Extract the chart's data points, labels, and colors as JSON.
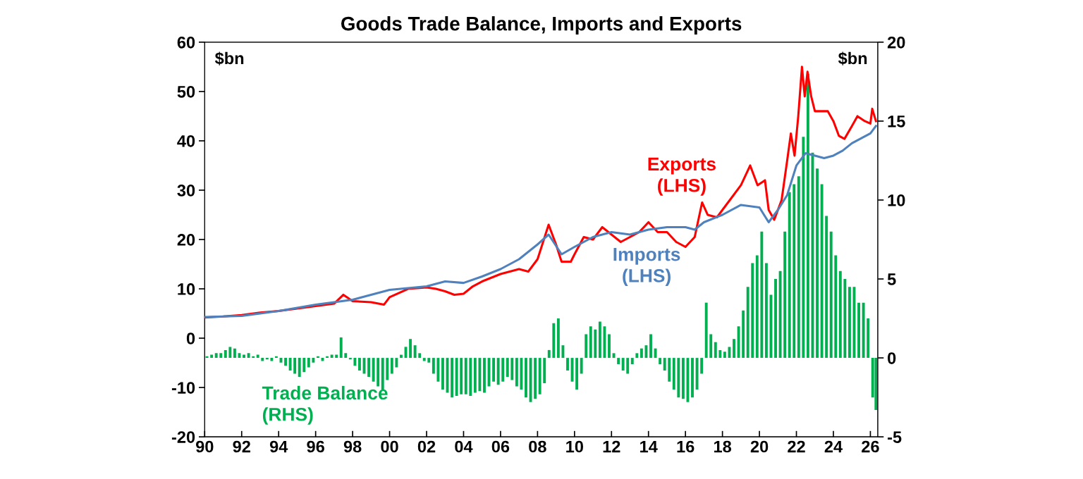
{
  "chart_data": {
    "type": "line",
    "title": "Goods Trade Balance, Imports and Exports",
    "annotations": [
      "$bn",
      "$bn"
    ],
    "xlim": [
      1990,
      2026.4
    ],
    "xticks": [
      {
        "value": 1990,
        "label": "90"
      },
      {
        "value": 1992,
        "label": "92"
      },
      {
        "value": 1994,
        "label": "94"
      },
      {
        "value": 1996,
        "label": "96"
      },
      {
        "value": 1998,
        "label": "98"
      },
      {
        "value": 2000,
        "label": "00"
      },
      {
        "value": 2002,
        "label": "02"
      },
      {
        "value": 2004,
        "label": "04"
      },
      {
        "value": 2006,
        "label": "06"
      },
      {
        "value": 2008,
        "label": "08"
      },
      {
        "value": 2010,
        "label": "10"
      },
      {
        "value": 2012,
        "label": "12"
      },
      {
        "value": 2014,
        "label": "14"
      },
      {
        "value": 2016,
        "label": "16"
      },
      {
        "value": 2018,
        "label": "18"
      },
      {
        "value": 2020,
        "label": "20"
      },
      {
        "value": 2022,
        "label": "22"
      },
      {
        "value": 2024,
        "label": "24"
      },
      {
        "value": 2026,
        "label": "26"
      }
    ],
    "ylim": [
      -20,
      60
    ],
    "yticks": [
      -20,
      -10,
      0,
      10,
      20,
      30,
      40,
      50,
      60
    ],
    "y2lim": [
      -5,
      20
    ],
    "y2ticks": [
      -5,
      0,
      5,
      10,
      15,
      20
    ],
    "grid": false,
    "legend": false,
    "series": [
      {
        "name": "Trade Balance\n(RHS)",
        "type": "bar",
        "axis": "y2",
        "color": "#00b050",
        "x": [
          1990.125,
          1990.375,
          1990.625,
          1990.875,
          1991.125,
          1991.375,
          1991.625,
          1991.875,
          1992.125,
          1992.375,
          1992.625,
          1992.875,
          1993.125,
          1993.375,
          1993.625,
          1993.875,
          1994.125,
          1994.375,
          1994.625,
          1994.875,
          1995.125,
          1995.375,
          1995.625,
          1995.875,
          1996.125,
          1996.375,
          1996.625,
          1996.875,
          1997.125,
          1997.375,
          1997.625,
          1997.875,
          1998.125,
          1998.375,
          1998.625,
          1998.875,
          1999.125,
          1999.375,
          1999.625,
          1999.875,
          2000.125,
          2000.375,
          2000.625,
          2000.875,
          2001.125,
          2001.375,
          2001.625,
          2001.875,
          2002.125,
          2002.375,
          2002.625,
          2002.875,
          2003.125,
          2003.375,
          2003.625,
          2003.875,
          2004.125,
          2004.375,
          2004.625,
          2004.875,
          2005.125,
          2005.375,
          2005.625,
          2005.875,
          2006.125,
          2006.375,
          2006.625,
          2006.875,
          2007.125,
          2007.375,
          2007.625,
          2007.875,
          2008.125,
          2008.375,
          2008.625,
          2008.875,
          2009.125,
          2009.375,
          2009.625,
          2009.875,
          2010.125,
          2010.375,
          2010.625,
          2010.875,
          2011.125,
          2011.375,
          2011.625,
          2011.875,
          2012.125,
          2012.375,
          2012.625,
          2012.875,
          2013.125,
          2013.375,
          2013.625,
          2013.875,
          2014.125,
          2014.375,
          2014.625,
          2014.875,
          2015.125,
          2015.375,
          2015.625,
          2015.875,
          2016.125,
          2016.375,
          2016.625,
          2016.875,
          2017.125,
          2017.375,
          2017.625,
          2017.875,
          2018.125,
          2018.375,
          2018.625,
          2018.875,
          2019.125,
          2019.375,
          2019.625,
          2019.875,
          2020.125,
          2020.375,
          2020.625,
          2020.875,
          2021.125,
          2021.375,
          2021.625,
          2021.875,
          2022.125,
          2022.375,
          2022.625,
          2022.875,
          2023.125,
          2023.375,
          2023.625,
          2023.875,
          2024.125,
          2024.375,
          2024.625,
          2024.875,
          2025.125,
          2025.375,
          2025.625,
          2025.875,
          2026.125,
          2026.3
        ],
        "values": [
          0.1,
          0.2,
          0.3,
          0.3,
          0.5,
          0.7,
          0.6,
          0.3,
          0.2,
          0.3,
          0.1,
          0.2,
          -0.2,
          -0.1,
          -0.2,
          0.1,
          -0.3,
          -0.5,
          -0.8,
          -1.0,
          -1.2,
          -0.9,
          -0.6,
          -0.3,
          0.1,
          -0.2,
          0.1,
          0.2,
          0.2,
          1.3,
          0.3,
          -0.1,
          -0.5,
          -0.8,
          -1.0,
          -1.2,
          -1.5,
          -1.8,
          -2.0,
          -1.4,
          -1.0,
          -0.6,
          0.2,
          0.7,
          1.2,
          0.8,
          0.3,
          -0.2,
          -0.3,
          -1.0,
          -1.5,
          -2.0,
          -2.2,
          -2.5,
          -2.4,
          -2.3,
          -2.3,
          -2.4,
          -2.2,
          -2.1,
          -2.2,
          -1.8,
          -1.5,
          -1.7,
          -1.5,
          -1.2,
          -1.4,
          -1.8,
          -2.0,
          -2.5,
          -2.8,
          -2.6,
          -2.3,
          -1.6,
          0.5,
          2.2,
          2.5,
          0.8,
          -0.8,
          -1.5,
          -2.0,
          -1.0,
          1.5,
          2.0,
          1.8,
          2.3,
          2.0,
          1.5,
          0.3,
          -0.4,
          -0.8,
          -1.0,
          -0.4,
          0.3,
          0.6,
          0.8,
          1.5,
          0.6,
          -0.4,
          -0.8,
          -1.5,
          -2.0,
          -2.5,
          -2.6,
          -2.8,
          -2.5,
          -2.0,
          -1.0,
          3.5,
          1.5,
          1.0,
          0.5,
          0.4,
          0.7,
          1.2,
          2.0,
          3.0,
          4.5,
          6.0,
          6.5,
          8.0,
          6.0,
          4.0,
          5.0,
          5.5,
          8.0,
          10.5,
          11.0,
          11.5,
          14.0,
          18.0,
          13.0,
          12.0,
          11.0,
          9.0,
          8.0,
          6.5,
          5.5,
          5.0,
          4.5,
          4.5,
          3.5,
          3.5,
          2.5,
          -2.5,
          -3.3
        ]
      },
      {
        "name": "Exports\n(LHS)",
        "color": "#ff0000",
        "x": [
          1990,
          1991,
          1992,
          1993,
          1994,
          1995,
          1996,
          1997,
          1997.5,
          1998,
          1999,
          1999.7,
          2000,
          2001,
          2002,
          2002.5,
          2003,
          2003.5,
          2004,
          2004.5,
          2005,
          2006,
          2007,
          2007.5,
          2008,
          2008.6,
          2009,
          2009.3,
          2009.8,
          2010,
          2010.5,
          2011,
          2011.5,
          2012,
          2012.5,
          2013,
          2013.5,
          2014,
          2014.5,
          2015,
          2015.5,
          2016,
          2016.5,
          2016.9,
          2017.2,
          2017.7,
          2018,
          2018.5,
          2019,
          2019.5,
          2019.9,
          2020.3,
          2020.5,
          2020.8,
          2021.2,
          2021.5,
          2021.7,
          2021.9,
          2022.1,
          2022.3,
          2022.45,
          2022.6,
          2022.8,
          2023,
          2023.3,
          2023.7,
          2024,
          2024.3,
          2024.6,
          2025,
          2025.3,
          2025.7,
          2026,
          2026.1,
          2026.3
        ],
        "values": [
          4.2,
          4.4,
          4.7,
          5.2,
          5.5,
          6.0,
          6.5,
          7.0,
          8.8,
          7.5,
          7.3,
          6.8,
          8.3,
          10.0,
          10.3,
          10.0,
          9.5,
          8.8,
          9.0,
          10.5,
          11.5,
          13.0,
          14.0,
          13.5,
          16.0,
          23.0,
          19.0,
          15.5,
          15.5,
          17.0,
          20.5,
          20.0,
          22.5,
          21.0,
          19.5,
          20.5,
          21.5,
          23.5,
          21.5,
          21.5,
          19.5,
          18.5,
          20.5,
          27.5,
          25.0,
          24.5,
          26.0,
          28.5,
          31.0,
          35.0,
          31.0,
          32.0,
          26.0,
          24.0,
          28.0,
          36.0,
          41.5,
          37.0,
          45.0,
          55.0,
          49.0,
          54.0,
          49.0,
          46.0,
          46.0,
          46.0,
          44.0,
          41.0,
          40.4,
          43.0,
          45.0,
          44.0,
          43.5,
          46.5,
          44.0
        ]
      },
      {
        "name": "Imports\n(LHS)",
        "color": "#4f81bd",
        "x": [
          1990,
          1992,
          1994,
          1996,
          1998,
          2000,
          2002,
          2003,
          2004,
          2005,
          2006,
          2007,
          2008,
          2008.6,
          2009.3,
          2010,
          2011,
          2012,
          2013,
          2014,
          2015,
          2016,
          2016.5,
          2017,
          2018,
          2019,
          2020,
          2020.5,
          2021,
          2021.5,
          2022,
          2022.5,
          2023,
          2023.5,
          2024,
          2024.5,
          2025,
          2025.5,
          2026,
          2026.3
        ],
        "values": [
          4.3,
          4.5,
          5.5,
          6.8,
          7.8,
          9.8,
          10.5,
          11.5,
          11.2,
          12.5,
          14.0,
          16.0,
          19.0,
          21.0,
          17.0,
          18.5,
          20.5,
          21.5,
          21.0,
          22.0,
          22.5,
          22.5,
          22.0,
          23.5,
          25.0,
          27.0,
          26.5,
          23.5,
          26.0,
          29.0,
          35.0,
          37.5,
          37.0,
          36.5,
          37.0,
          38.0,
          39.5,
          40.5,
          41.5,
          43.0
        ]
      }
    ]
  }
}
